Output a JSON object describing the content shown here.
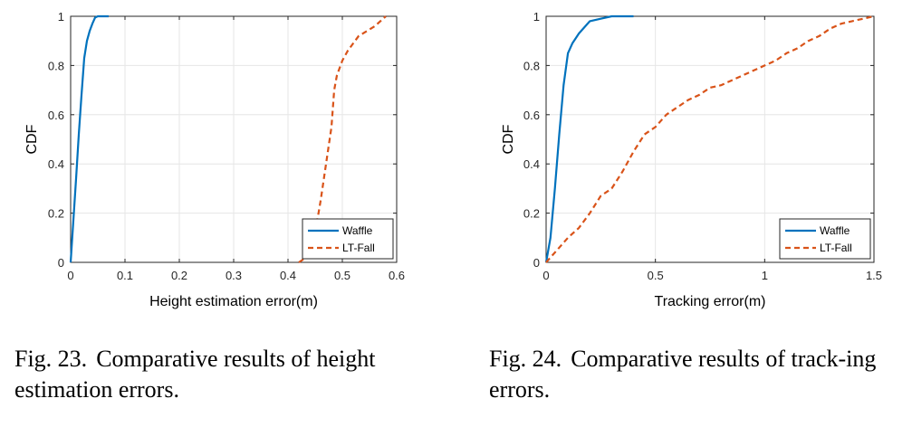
{
  "colors": {
    "waffle": "#0072BD",
    "ltfall": "#D95319",
    "grid": "#e6e6e6",
    "axis": "#262626"
  },
  "captions": [
    {
      "label": "Fig. 23.",
      "text": "Comparative results of height estimation errors."
    },
    {
      "label": "Fig. 24.",
      "text": "Comparative results of track-ing errors."
    }
  ],
  "chart_data": [
    {
      "type": "line",
      "xlabel": "Height estimation error(m)",
      "ylabel": "CDF",
      "xlim": [
        0,
        0.6
      ],
      "ylim": [
        0,
        1
      ],
      "xticks": [
        "0",
        "0.1",
        "0.2",
        "0.3",
        "0.4",
        "0.5",
        "0.6"
      ],
      "yticks": [
        "0",
        "0.2",
        "0.4",
        "0.6",
        "0.8",
        "1"
      ],
      "grid": true,
      "legend_position": "bottom-right",
      "series": [
        {
          "name": "Waffle",
          "style": "solid",
          "x": [
            0,
            0.005,
            0.01,
            0.015,
            0.02,
            0.025,
            0.03,
            0.035,
            0.04,
            0.045,
            0.05,
            0.07
          ],
          "y": [
            0,
            0.17,
            0.34,
            0.52,
            0.68,
            0.83,
            0.9,
            0.94,
            0.97,
            0.995,
            1,
            1
          ]
        },
        {
          "name": "LT-Fall",
          "style": "dashed",
          "x": [
            0.42,
            0.44,
            0.45,
            0.46,
            0.47,
            0.48,
            0.485,
            0.49,
            0.5,
            0.51,
            0.53,
            0.56,
            0.57,
            0.58
          ],
          "y": [
            0,
            0.03,
            0.12,
            0.25,
            0.4,
            0.55,
            0.7,
            0.76,
            0.82,
            0.86,
            0.92,
            0.96,
            0.98,
            1
          ]
        }
      ]
    },
    {
      "type": "line",
      "xlabel": "Tracking error(m)",
      "ylabel": "CDF",
      "xlim": [
        0,
        1.5
      ],
      "ylim": [
        0,
        1
      ],
      "xticks": [
        "0",
        "0.5",
        "1",
        "1.5"
      ],
      "yticks": [
        "0",
        "0.2",
        "0.4",
        "0.6",
        "0.8",
        "1"
      ],
      "grid": true,
      "legend_position": "bottom-right",
      "series": [
        {
          "name": "Waffle",
          "style": "solid",
          "x": [
            0,
            0.02,
            0.04,
            0.06,
            0.08,
            0.1,
            0.12,
            0.15,
            0.18,
            0.2,
            0.25,
            0.3,
            0.4
          ],
          "y": [
            0,
            0.1,
            0.3,
            0.52,
            0.72,
            0.85,
            0.89,
            0.93,
            0.96,
            0.98,
            0.99,
            1,
            1
          ]
        },
        {
          "name": "LT-Fall",
          "style": "dashed",
          "x": [
            0,
            0.05,
            0.1,
            0.15,
            0.2,
            0.25,
            0.3,
            0.35,
            0.4,
            0.45,
            0.5,
            0.55,
            0.6,
            0.65,
            0.7,
            0.75,
            0.8,
            0.9,
            1.0,
            1.05,
            1.1,
            1.15,
            1.2,
            1.25,
            1.3,
            1.35,
            1.4,
            1.45,
            1.5
          ],
          "y": [
            0,
            0.05,
            0.1,
            0.14,
            0.2,
            0.27,
            0.3,
            0.37,
            0.45,
            0.52,
            0.55,
            0.6,
            0.63,
            0.66,
            0.68,
            0.71,
            0.72,
            0.76,
            0.8,
            0.82,
            0.85,
            0.87,
            0.9,
            0.92,
            0.95,
            0.97,
            0.98,
            0.99,
            1
          ]
        }
      ]
    }
  ]
}
